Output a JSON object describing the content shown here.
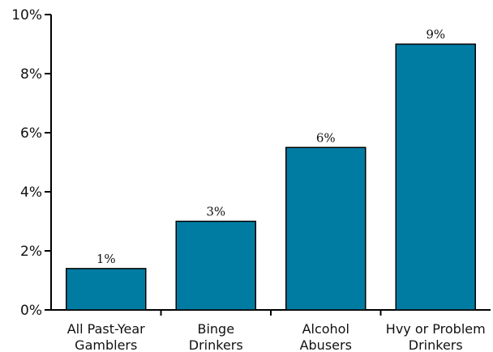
{
  "chart_data": {
    "type": "bar",
    "categories": [
      [
        "All Past-Year",
        "Gamblers"
      ],
      [
        "Binge",
        "Drinkers"
      ],
      [
        "Alcohol",
        "Abusers"
      ],
      [
        "Hvy or Problem",
        "Drinkers"
      ]
    ],
    "values": [
      1.4,
      3.0,
      5.5,
      9.0
    ],
    "data_labels": [
      "1%",
      "3%",
      "6%",
      "9%"
    ],
    "y_ticks": [
      0,
      2,
      4,
      6,
      8,
      10
    ],
    "y_tick_labels": [
      "0%",
      "2%",
      "4%",
      "6%",
      "8%",
      "10%"
    ],
    "ylim": [
      0,
      10
    ],
    "bar_color": "#007ca3",
    "grid": false
  }
}
